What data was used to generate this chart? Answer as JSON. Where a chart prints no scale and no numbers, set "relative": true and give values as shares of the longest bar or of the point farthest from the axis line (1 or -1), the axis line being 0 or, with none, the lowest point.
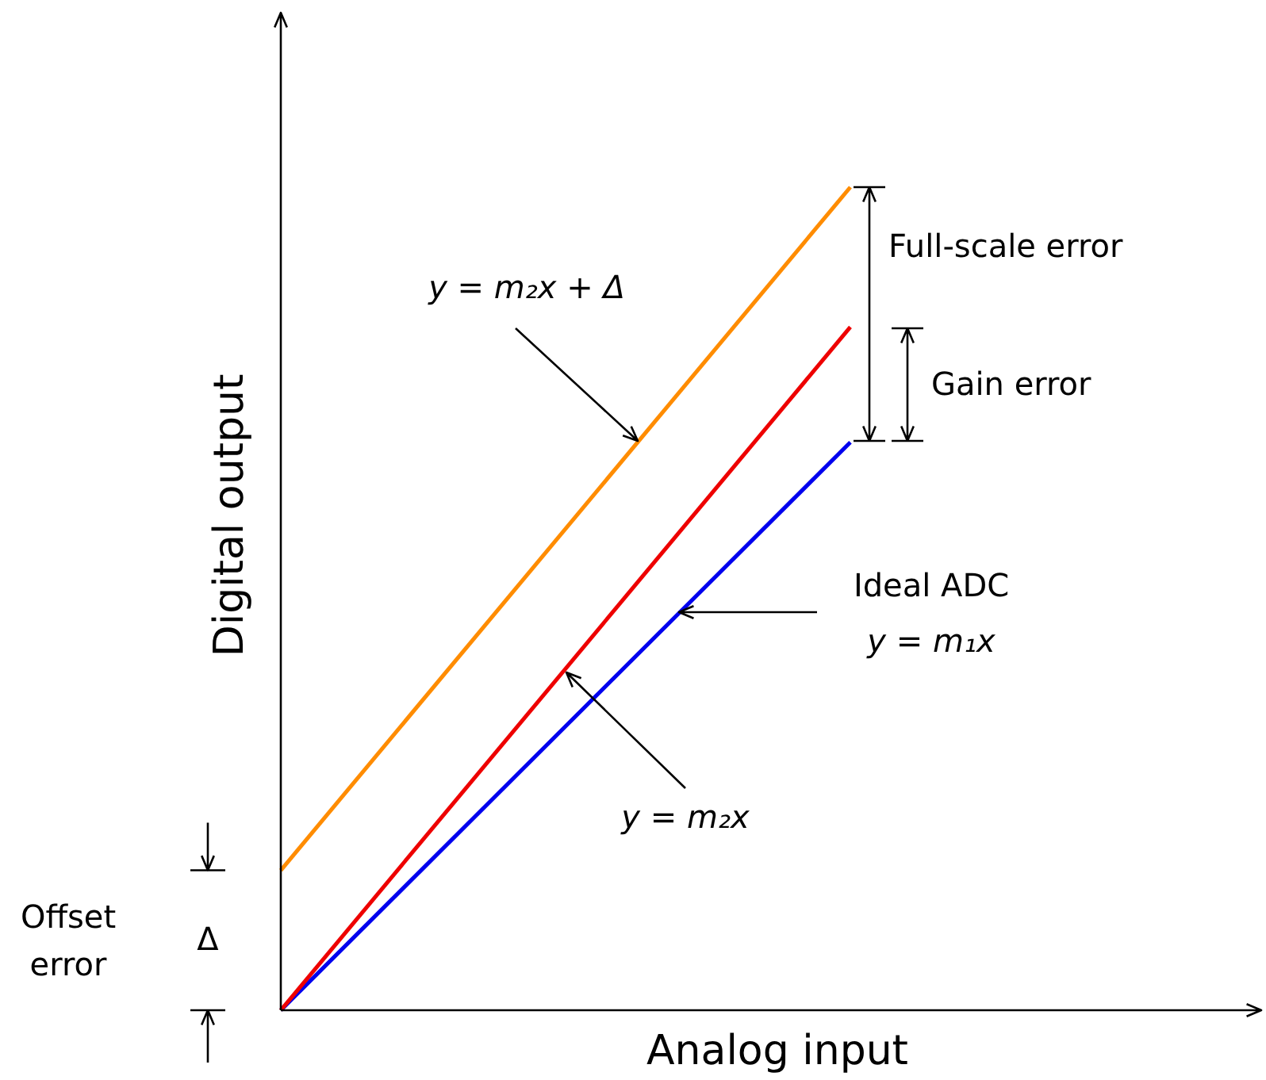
{
  "chart_data": {
    "type": "line",
    "relative": true,
    "categories": [
      null,
      null
    ],
    "xlabel": "Analog input",
    "ylabel": "Digital output",
    "series": [
      {
        "color": "#ff8c00",
        "values": [
          0.17,
          1
        ]
      },
      {
        "color": "#ee0000",
        "values": [
          0,
          0.83
        ]
      },
      {
        "color": "#0000ee",
        "values": [
          0,
          0.69
        ]
      }
    ],
    "annotations": [
      "y = m₂x + Δ",
      "Full-scale error",
      "Gain error",
      "Ideal ADC",
      "y = m₁x",
      "y = m₂x",
      "Offset error",
      "Δ"
    ],
    "legend": false
  }
}
